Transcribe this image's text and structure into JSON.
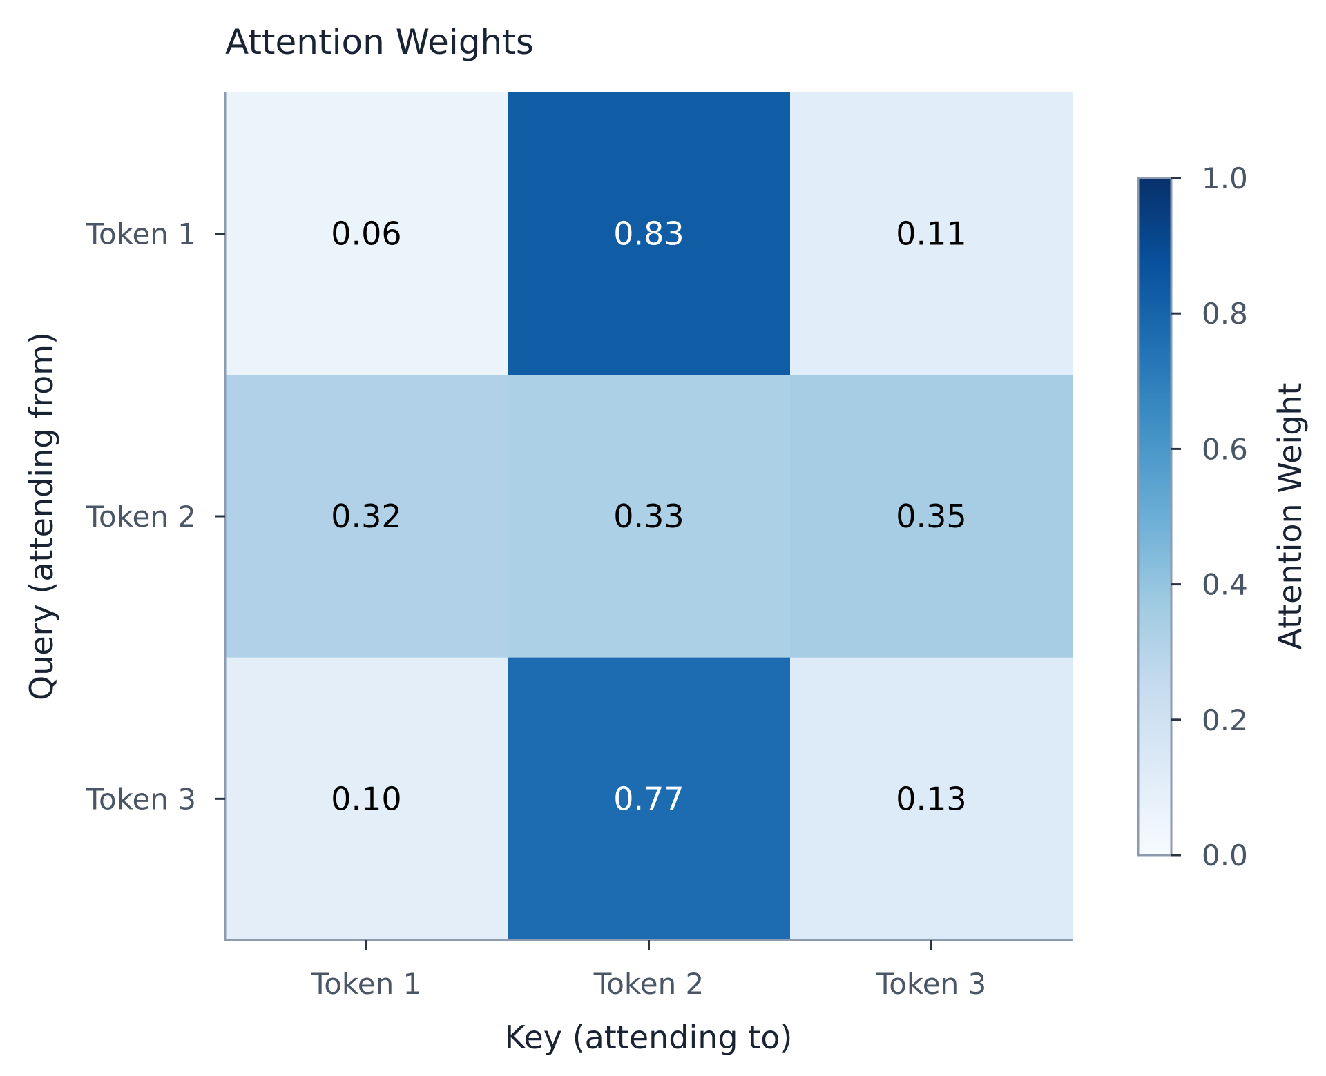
{
  "chart_data": {
    "type": "heatmap",
    "title": "Attention Weights",
    "xlabel": "Key (attending to)",
    "ylabel": "Query (attending from)",
    "x_categories": [
      "Token 1",
      "Token 2",
      "Token 3"
    ],
    "y_categories": [
      "Token 1",
      "Token 2",
      "Token 3"
    ],
    "values": [
      [
        0.06,
        0.83,
        0.11
      ],
      [
        0.32,
        0.33,
        0.35
      ],
      [
        0.1,
        0.77,
        0.13
      ]
    ],
    "value_labels": [
      [
        "0.06",
        "0.83",
        "0.11"
      ],
      [
        "0.32",
        "0.33",
        "0.35"
      ],
      [
        "0.10",
        "0.77",
        "0.13"
      ]
    ],
    "colormap": "Blues",
    "colorbar": {
      "label": "Attention Weight",
      "range": [
        0,
        1
      ],
      "ticks": [
        0.0,
        0.2,
        0.4,
        0.6,
        0.8,
        1.0
      ],
      "tick_labels": [
        "0.0",
        "0.2",
        "0.4",
        "0.6",
        "0.8",
        "1.0"
      ]
    },
    "colors": {
      "axis": "#8c9bb0",
      "text_dark": "#000000",
      "text_light": "#ffffff"
    }
  }
}
